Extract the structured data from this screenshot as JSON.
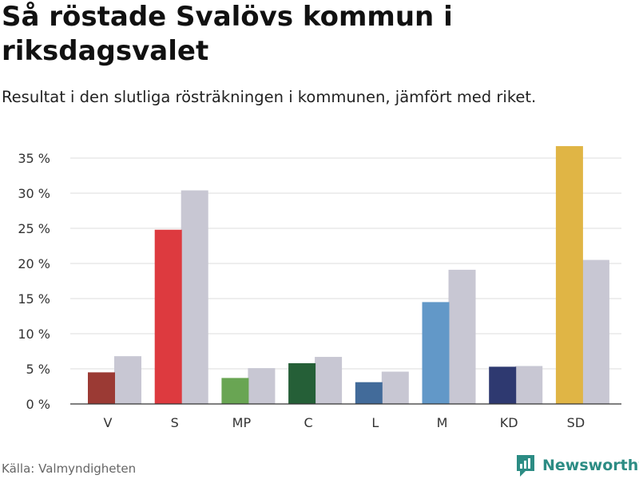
{
  "title": "Så röstade Svalövs kommun i riksdagsvalet",
  "subtitle": "Resultat i den slutliga rösträkningen i kommunen, jämfört med riket.",
  "source": "Källa: Valmyndigheten",
  "brand": {
    "name": "Newsworthy",
    "logo_icon": "bar-chart-speech-bubble-icon",
    "color": "#2c8c84"
  },
  "chart_data": {
    "type": "bar",
    "title": "Så röstade Svalövs kommun i riksdagsvalet",
    "subtitle": "Resultat i den slutliga rösträkningen i kommunen, jämfört med riket.",
    "xlabel": "",
    "ylabel": "",
    "ylim": [
      0,
      35
    ],
    "yticks": [
      0,
      5,
      10,
      15,
      20,
      25,
      30,
      35
    ],
    "ytick_labels": [
      "0 %",
      "5 %",
      "10 %",
      "15 %",
      "20 %",
      "25 %",
      "30 %",
      "35 %"
    ],
    "grid": true,
    "legend": "none",
    "categories": [
      "V",
      "S",
      "MP",
      "C",
      "L",
      "M",
      "KD",
      "SD"
    ],
    "series": [
      {
        "name": "Svalövs kommun",
        "values": [
          4.5,
          24.8,
          3.7,
          5.8,
          3.1,
          14.5,
          5.3,
          36.7
        ],
        "colors": [
          "#9b3a34",
          "#dd3a3f",
          "#69a553",
          "#255f37",
          "#426b9a",
          "#6298c8",
          "#2e3970",
          "#e0b545"
        ]
      },
      {
        "name": "Riket",
        "values": [
          6.8,
          30.4,
          5.1,
          6.7,
          4.6,
          19.1,
          5.4,
          20.5
        ],
        "color": "#c8c7d3"
      }
    ]
  }
}
